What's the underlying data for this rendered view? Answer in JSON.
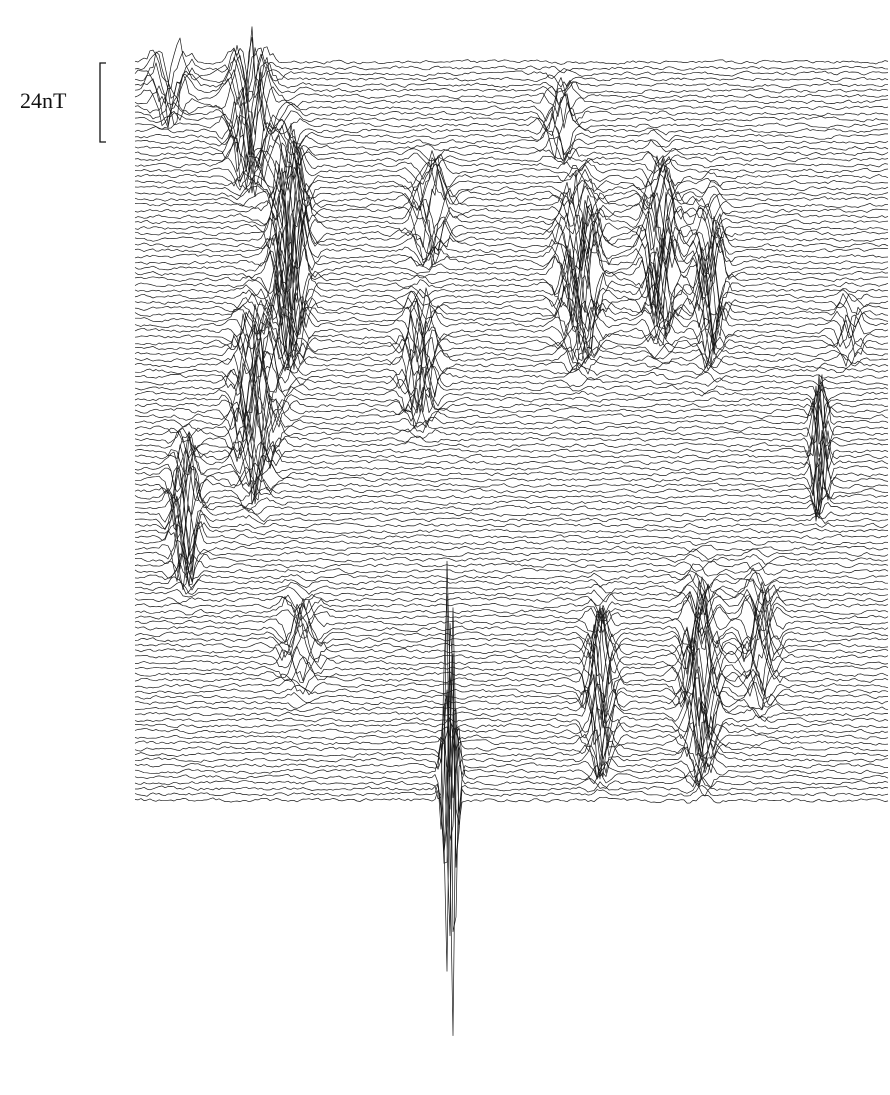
{
  "scale_label": "24nT"
}
